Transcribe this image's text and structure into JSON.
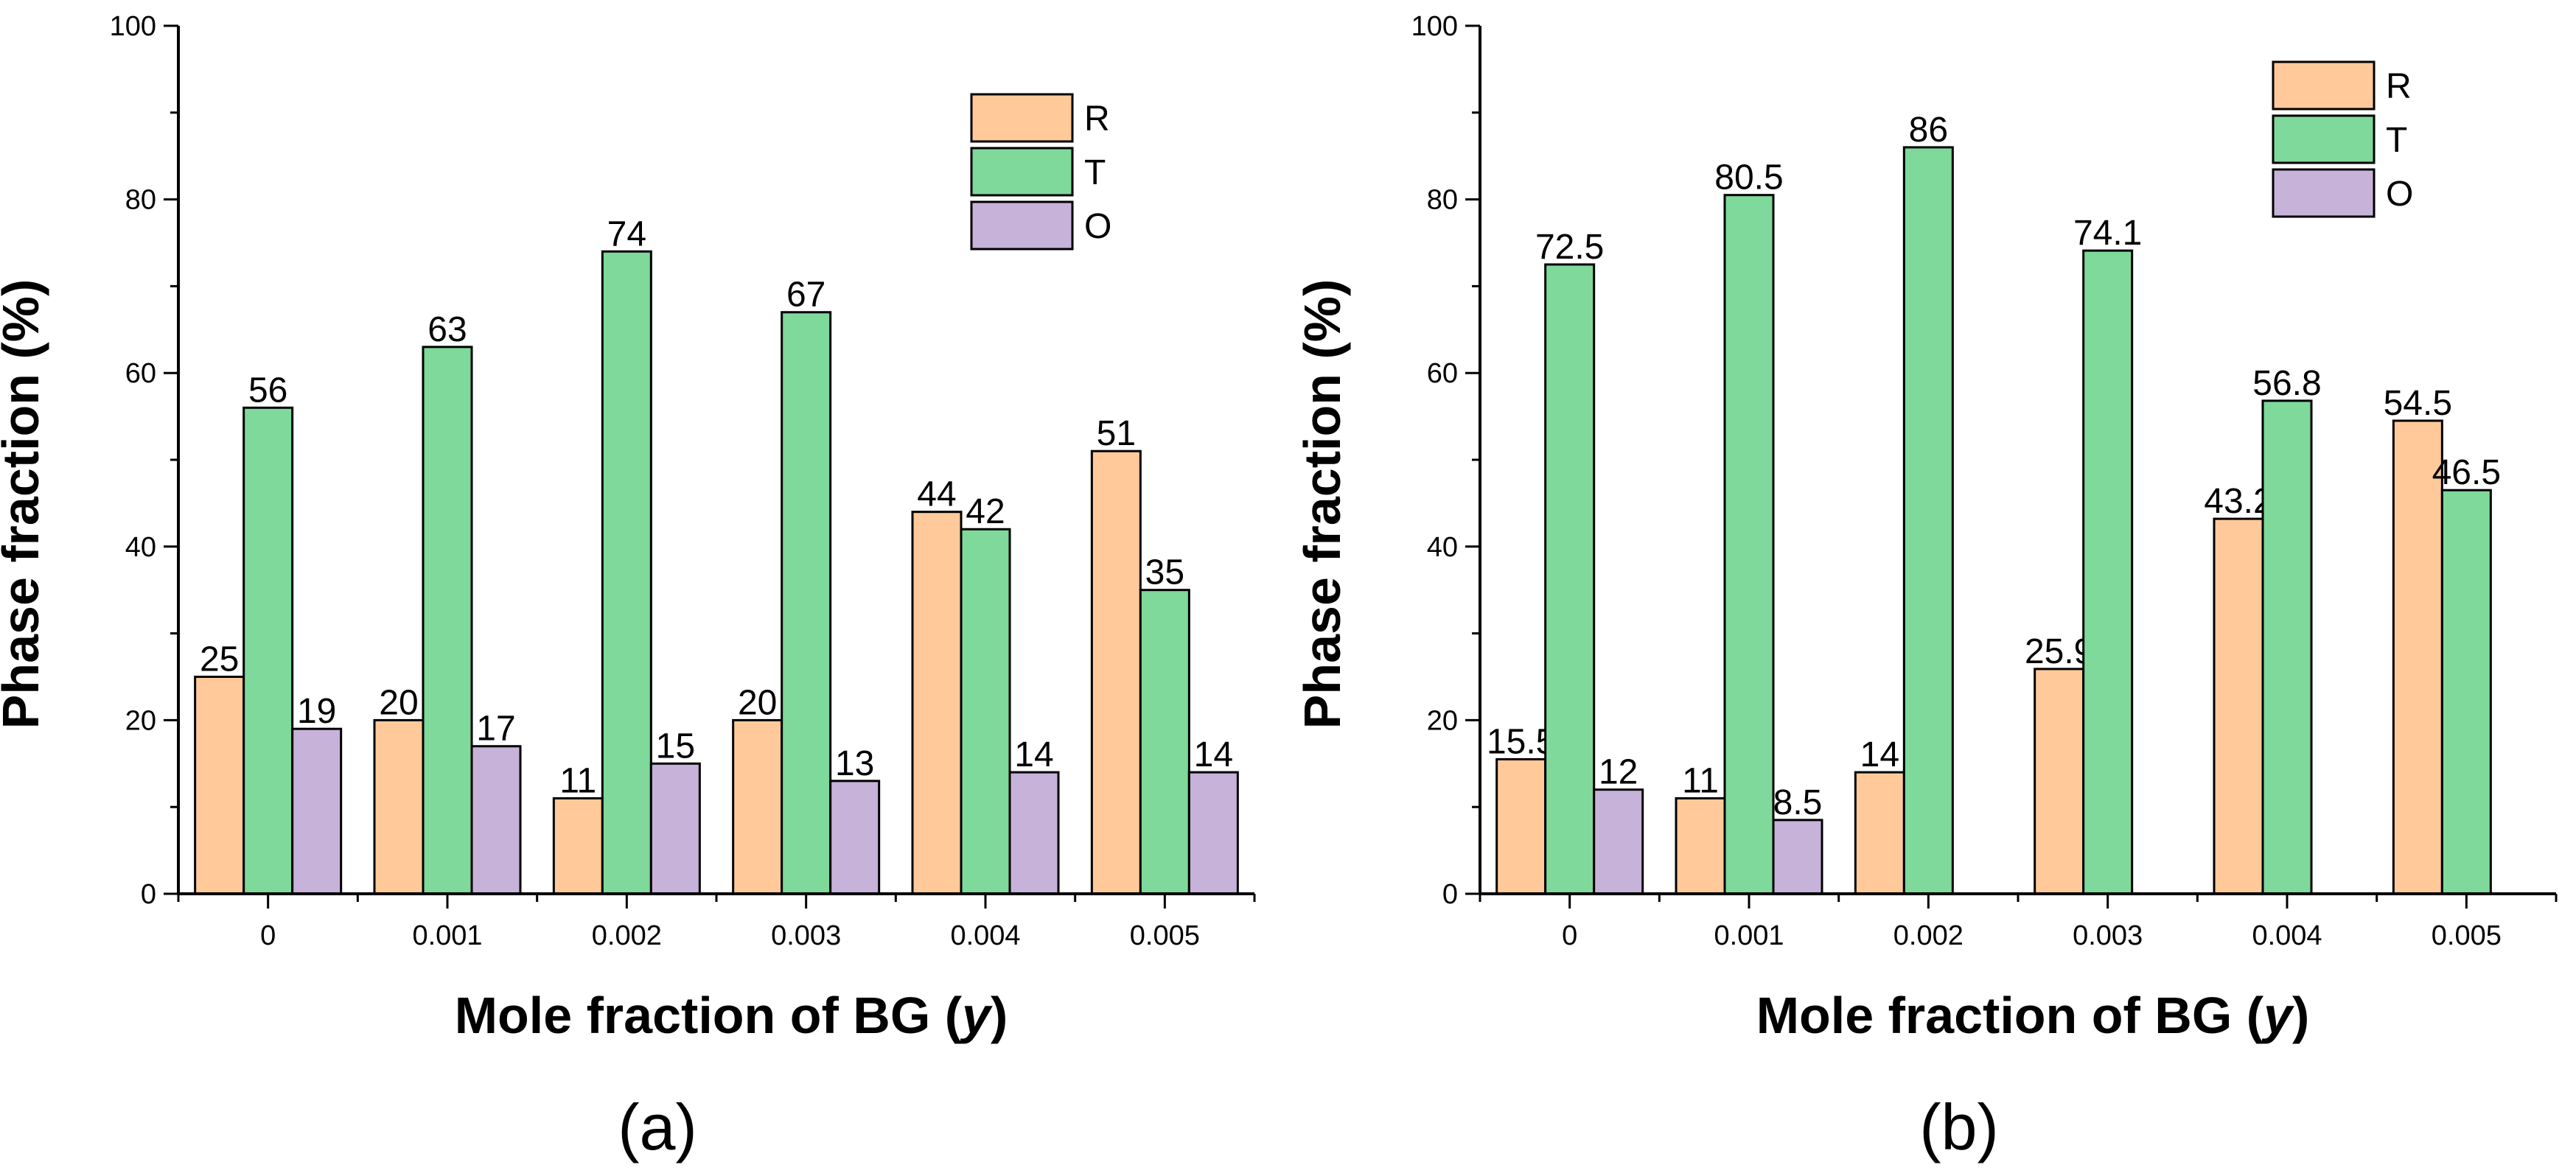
{
  "colors": {
    "R": "#FFC99A",
    "T": "#7ED99A",
    "O": "#C7B2DA",
    "stroke": "#000000"
  },
  "chart_data": [
    {
      "type": "bar",
      "panel_label": "(a)",
      "xlabel_main": "Mole fraction of BG (",
      "xlabel_var": "y",
      "xlabel_end": ")",
      "ylabel": "Phase fraction (%)",
      "ylim": [
        0,
        100
      ],
      "yticks": [
        "0",
        "20",
        "40",
        "60",
        "80",
        "100"
      ],
      "categories": [
        "0",
        "0.001",
        "0.002",
        "0.003",
        "0.004",
        "0.005"
      ],
      "legend_position": "top-right",
      "series": [
        {
          "name": "R",
          "values": [
            25,
            20,
            11,
            20,
            44,
            51
          ],
          "labels": [
            "25",
            "20",
            "11",
            "20",
            "44",
            "51"
          ]
        },
        {
          "name": "T",
          "values": [
            56,
            63,
            74,
            67,
            42,
            35
          ],
          "labels": [
            "56",
            "63",
            "74",
            "67",
            "42",
            "35"
          ]
        },
        {
          "name": "O",
          "values": [
            19,
            17,
            15,
            13,
            14,
            14
          ],
          "labels": [
            "19",
            "17",
            "15",
            "13",
            "14",
            "14"
          ]
        }
      ]
    },
    {
      "type": "bar",
      "panel_label": "(b)",
      "xlabel_main": "Mole fraction of BG (",
      "xlabel_var": "y",
      "xlabel_end": ")",
      "ylabel": "Phase fraction (%)",
      "ylim": [
        0,
        100
      ],
      "yticks": [
        "0",
        "20",
        "40",
        "60",
        "80",
        "100"
      ],
      "categories": [
        "0",
        "0.001",
        "0.002",
        "0.003",
        "0.004",
        "0.005"
      ],
      "legend_position": "top-right",
      "series": [
        {
          "name": "R",
          "values": [
            15.5,
            11,
            14,
            25.9,
            43.2,
            54.5
          ],
          "labels": [
            "15.5",
            "11",
            "14",
            "25.9",
            "43.2",
            "54.5"
          ]
        },
        {
          "name": "T",
          "values": [
            72.5,
            80.5,
            86,
            74.1,
            56.8,
            46.5
          ],
          "labels": [
            "72.5",
            "80.5",
            "86",
            "74.1",
            "56.8",
            "46.5"
          ]
        },
        {
          "name": "O",
          "values": [
            12,
            8.5,
            null,
            null,
            null,
            null
          ],
          "labels": [
            "12",
            "8.5",
            null,
            null,
            null,
            null
          ]
        }
      ]
    }
  ]
}
